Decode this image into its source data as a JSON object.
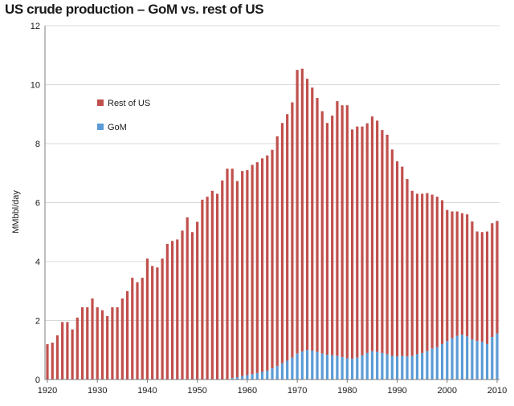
{
  "chart_data": {
    "type": "bar",
    "stacked": true,
    "title": "US crude production – GoM vs. rest of US",
    "ylabel": "MMbbl/day",
    "xlabel": "",
    "ylim": [
      0,
      12
    ],
    "yticks": [
      "0",
      "2",
      "4",
      "6",
      "8",
      "10",
      "12"
    ],
    "xticks": [
      "1920",
      "1930",
      "1940",
      "1950",
      "1960",
      "1970",
      "1980",
      "1990",
      "2000",
      "2010"
    ],
    "grid": "horizontal",
    "legend_position": "left, upper middle",
    "x": [
      1920,
      1921,
      1922,
      1923,
      1924,
      1925,
      1926,
      1927,
      1928,
      1929,
      1930,
      1931,
      1932,
      1933,
      1934,
      1935,
      1936,
      1937,
      1938,
      1939,
      1940,
      1941,
      1942,
      1943,
      1944,
      1945,
      1946,
      1947,
      1948,
      1949,
      1950,
      1951,
      1952,
      1953,
      1954,
      1955,
      1956,
      1957,
      1958,
      1959,
      1960,
      1961,
      1962,
      1963,
      1964,
      1965,
      1966,
      1967,
      1968,
      1969,
      1970,
      1971,
      1972,
      1973,
      1974,
      1975,
      1976,
      1977,
      1978,
      1979,
      1980,
      1981,
      1982,
      1983,
      1984,
      1985,
      1986,
      1987,
      1988,
      1989,
      1990,
      1991,
      1992,
      1993,
      1994,
      1995,
      1996,
      1997,
      1998,
      1999,
      2000,
      2001,
      2002,
      2003,
      2004,
      2005,
      2006,
      2007,
      2008,
      2009,
      2010
    ],
    "series": [
      {
        "name": "GoM",
        "color": "#5b9bd5",
        "values": [
          0,
          0,
          0,
          0,
          0,
          0,
          0,
          0,
          0,
          0,
          0,
          0,
          0,
          0,
          0,
          0,
          0,
          0,
          0,
          0,
          0,
          0,
          0,
          0,
          0,
          0,
          0,
          0,
          0,
          0,
          0,
          0,
          0,
          0,
          0,
          0,
          0,
          0.05,
          0.08,
          0.12,
          0.15,
          0.18,
          0.22,
          0.26,
          0.3,
          0.38,
          0.46,
          0.55,
          0.64,
          0.74,
          0.88,
          0.95,
          1.0,
          0.98,
          0.93,
          0.88,
          0.84,
          0.82,
          0.8,
          0.76,
          0.72,
          0.7,
          0.74,
          0.82,
          0.9,
          0.96,
          0.94,
          0.9,
          0.85,
          0.8,
          0.78,
          0.8,
          0.78,
          0.8,
          0.86,
          0.9,
          0.96,
          1.05,
          1.1,
          1.2,
          1.3,
          1.4,
          1.48,
          1.52,
          1.46,
          1.36,
          1.3,
          1.28,
          1.2,
          1.44,
          1.56
        ]
      },
      {
        "name": "Rest of US",
        "color": "#c0504d",
        "values": [
          1.2,
          1.25,
          1.5,
          1.95,
          1.95,
          1.7,
          2.1,
          2.45,
          2.45,
          2.75,
          2.45,
          2.35,
          2.15,
          2.45,
          2.45,
          2.75,
          3.0,
          3.45,
          3.3,
          3.45,
          4.1,
          3.85,
          3.8,
          4.1,
          4.6,
          4.7,
          4.75,
          5.05,
          5.5,
          5.0,
          5.35,
          6.1,
          6.2,
          6.4,
          6.3,
          6.75,
          7.15,
          7.1,
          6.65,
          6.95,
          6.95,
          7.1,
          7.15,
          7.24,
          7.3,
          7.41,
          7.79,
          8.15,
          8.36,
          8.66,
          9.62,
          9.59,
          9.2,
          8.92,
          8.62,
          8.22,
          7.86,
          8.13,
          8.64,
          8.54,
          8.58,
          7.78,
          7.84,
          7.76,
          7.79,
          7.96,
          7.84,
          7.56,
          7.45,
          7.0,
          6.62,
          6.42,
          6.02,
          5.6,
          5.44,
          5.4,
          5.36,
          5.22,
          5.1,
          4.88,
          4.45,
          4.3,
          4.22,
          4.12,
          4.14,
          4.0,
          3.72,
          3.72,
          3.82,
          3.86,
          3.82
        ]
      }
    ]
  }
}
